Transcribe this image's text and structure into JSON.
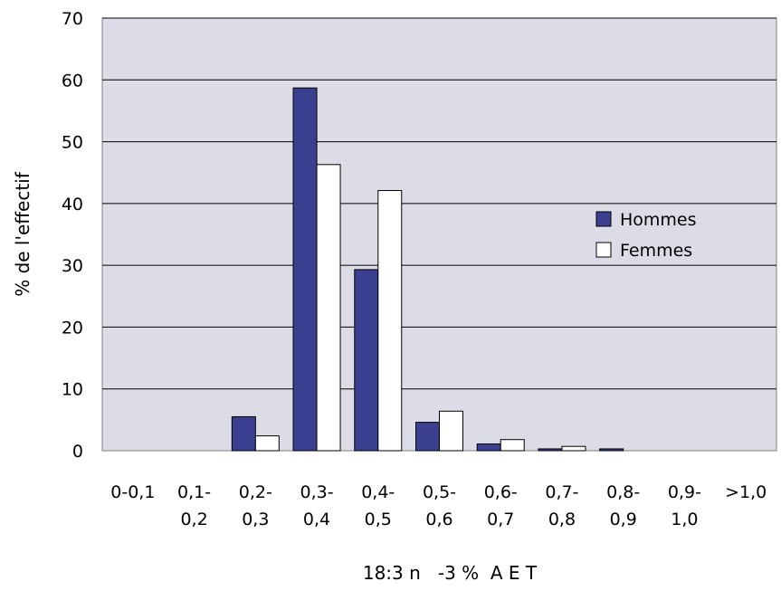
{
  "chart_data": {
    "type": "bar",
    "title": "",
    "xlabel": "18:3 n   -3 %  A E T",
    "ylabel": "% de l'effectif",
    "ylim": [
      0,
      70
    ],
    "yticks": [
      0,
      10,
      20,
      30,
      40,
      50,
      60,
      70
    ],
    "grid": true,
    "legend_position": "right",
    "categories": [
      [
        "0-0,1"
      ],
      [
        "0,1-",
        "0,2"
      ],
      [
        "0,2-",
        "0,3"
      ],
      [
        "0,3-",
        "0,4"
      ],
      [
        "0,4-",
        "0,5"
      ],
      [
        "0,5-",
        "0,6"
      ],
      [
        "0,6-",
        "0,7"
      ],
      [
        "0,7-",
        "0,8"
      ],
      [
        "0,8-",
        "0,9"
      ],
      [
        "0,9-",
        "1,0"
      ],
      [
        ">1,0"
      ]
    ],
    "series": [
      {
        "name": "Hommes",
        "color": "#3a3f8f",
        "values": [
          0,
          0,
          5.5,
          58.7,
          29.3,
          4.6,
          1.1,
          0.3,
          0.3,
          0,
          0
        ]
      },
      {
        "name": "Femmes",
        "color": "#ffffff",
        "values": [
          0,
          0,
          2.4,
          46.3,
          42.1,
          6.4,
          1.8,
          0.7,
          0,
          0,
          0
        ]
      }
    ],
    "colors": {
      "plot_background": "#dcdce6",
      "gridline": "#000000"
    }
  }
}
